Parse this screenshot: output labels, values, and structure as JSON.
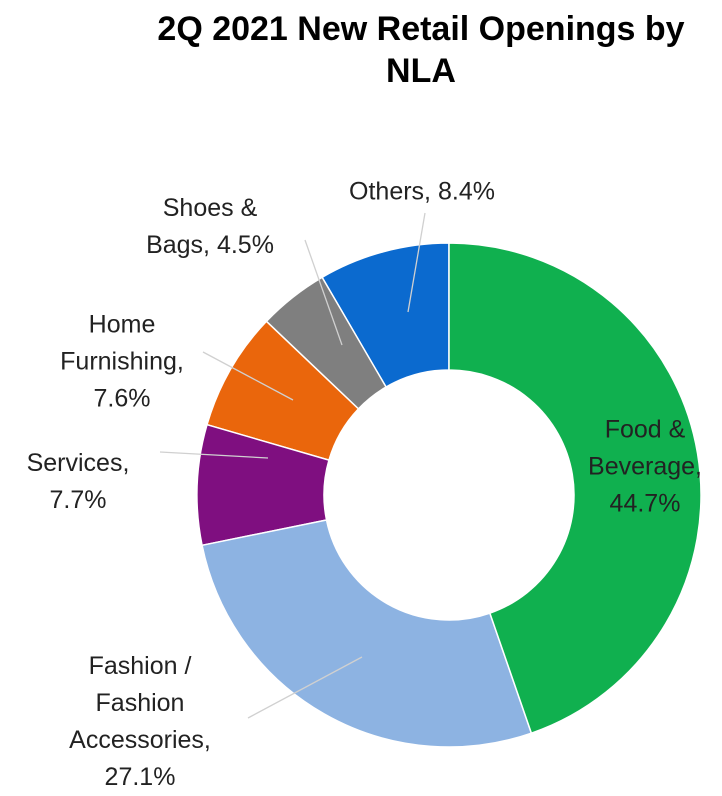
{
  "chart_data": {
    "type": "donut",
    "title": "2Q 2021 New Retail Openings by NLA",
    "categories": [
      "Food & Beverage,",
      "Fashion / Fashion Accessories,",
      "Services,",
      "Home Furnishing,",
      "Shoes & Bags,",
      "Others,"
    ],
    "values": [
      44.7,
      27.1,
      7.7,
      7.6,
      4.5,
      8.4
    ],
    "value_labels": [
      "44.7%",
      "27.1%",
      "7.7%",
      "7.6%",
      "4.5%",
      "8.4%"
    ],
    "colors": [
      "#10b04f",
      "#8db3e2",
      "#7f0f80",
      "#ea660c",
      "#7f7f7f",
      "#0b6acf"
    ]
  }
}
